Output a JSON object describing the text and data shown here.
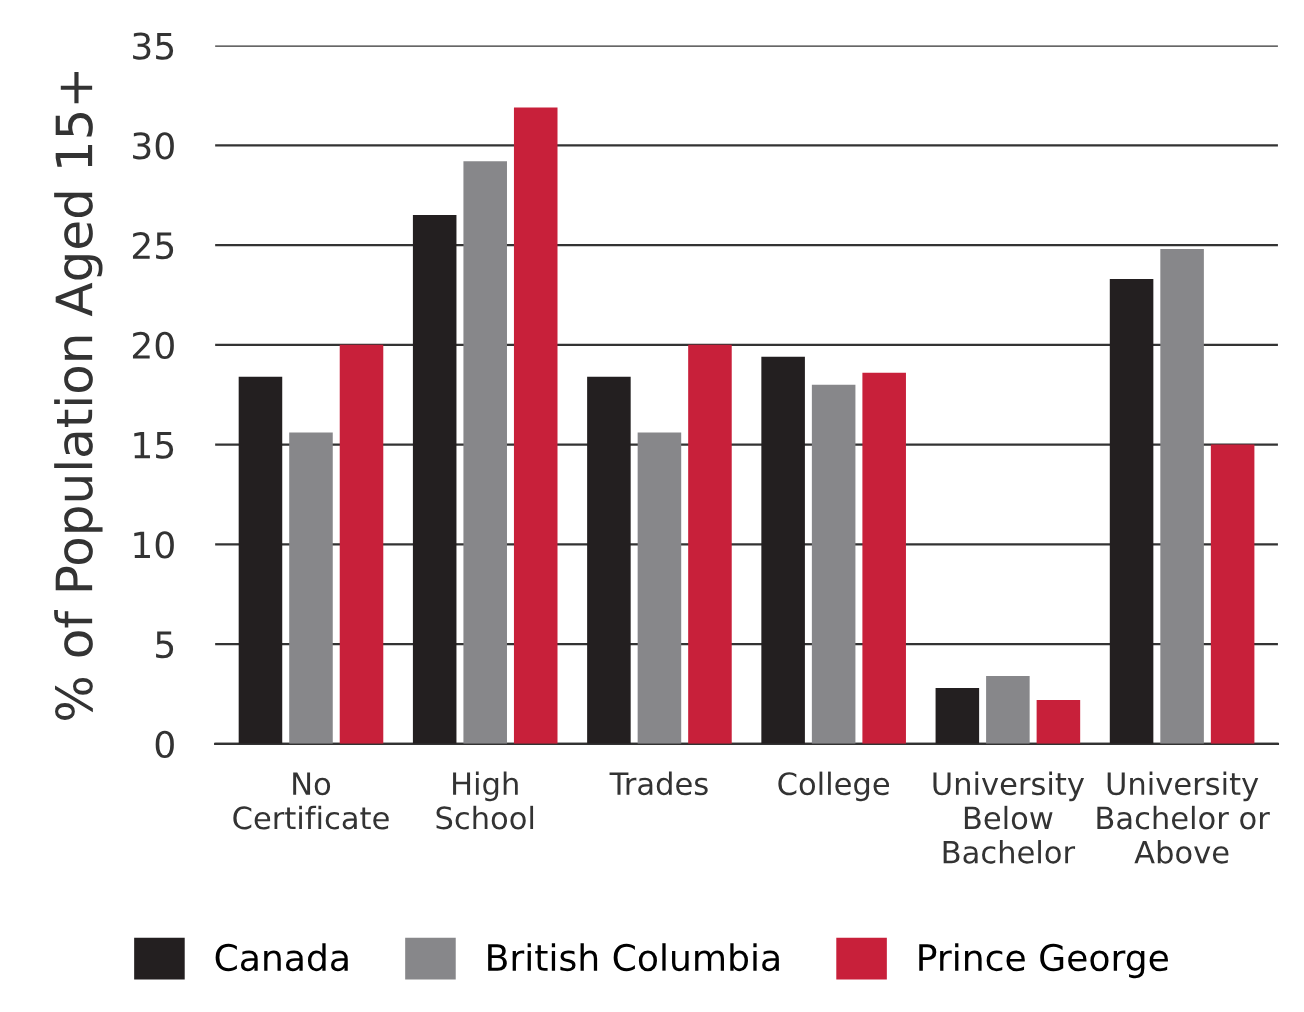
{
  "chart_data": {
    "type": "bar",
    "ylabel": "% of Population Aged 15+",
    "categories": [
      "No\nCertificate",
      "High\nSchool",
      "Trades",
      "College",
      "University\nBelow\nBachelor",
      "University\nBachelor or\nAbove"
    ],
    "series": [
      {
        "name": "Canada",
        "color": "#231f20",
        "values": [
          18.4,
          26.5,
          18.4,
          19.4,
          2.8,
          23.3
        ]
      },
      {
        "name": "British Columbia",
        "color": "#87878a",
        "values": [
          15.6,
          29.2,
          15.6,
          18.0,
          3.4,
          24.8
        ]
      },
      {
        "name": "Prince George",
        "color": "#c8203a",
        "values": [
          20.0,
          31.9,
          20.0,
          18.6,
          2.2,
          15.0
        ]
      }
    ],
    "ylim": [
      0,
      35
    ],
    "yticks": [
      0,
      5,
      10,
      15,
      20,
      25,
      30,
      35
    ],
    "grid": "y",
    "legend": "bottom"
  }
}
